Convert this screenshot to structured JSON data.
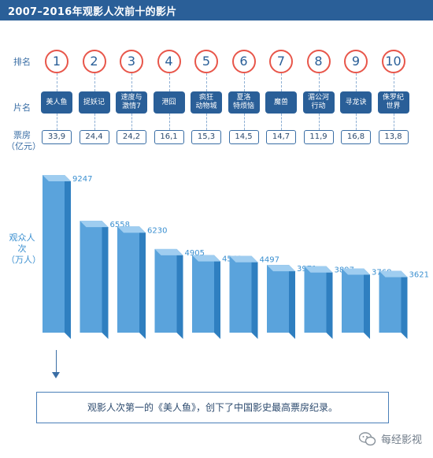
{
  "header": {
    "title": "2007–2016年观影人次前十的影片"
  },
  "labels": {
    "rank": "排名",
    "film": "片名",
    "box_office": [
      "票房",
      "（亿元）"
    ],
    "audience": [
      "观众人次",
      "（万人）"
    ]
  },
  "colors": {
    "bar": "#5aa3dc",
    "bar_top": "#9fcdf0",
    "bar_side": "#2f7fc0",
    "accent": "#2a5f98",
    "rank_ring": "#e8564a"
  },
  "chart_data": {
    "type": "bar",
    "categories": [
      "美人鱼",
      "捉妖记",
      "速度与激情7",
      "港囧",
      "疯狂动物城",
      "夏洛特烦恼",
      "魔兽",
      "湄公河行动",
      "寻龙诀",
      "侏罗纪世界"
    ],
    "category_lines": [
      [
        "美人鱼"
      ],
      [
        "捉妖记"
      ],
      [
        "速度与",
        "激情7"
      ],
      [
        "港囧"
      ],
      [
        "疯狂",
        "动物城"
      ],
      [
        "夏洛",
        "特烦恼"
      ],
      [
        "魔兽"
      ],
      [
        "湄公河",
        "行动"
      ],
      [
        "寻龙诀"
      ],
      [
        "侏罗纪",
        "世界"
      ]
    ],
    "ranks": [
      "1",
      "2",
      "3",
      "4",
      "5",
      "6",
      "7",
      "8",
      "9",
      "10"
    ],
    "box_office": [
      "33,9",
      "24,4",
      "24,2",
      "16,1",
      "15,3",
      "14,5",
      "14,7",
      "11,9",
      "16,8",
      "13,8"
    ],
    "values": [
      9247,
      6558,
      6230,
      4905,
      4549,
      4497,
      3971,
      3897,
      3768,
      3621
    ],
    "ylabel": "观众人次（万人）",
    "ylim": [
      0,
      9247
    ]
  },
  "caption": "观影人次第一的《美人鱼》，创下了中国影史最高票房纪录。",
  "footer": {
    "brand": "每经影视",
    "icon": "wechat-icon"
  }
}
